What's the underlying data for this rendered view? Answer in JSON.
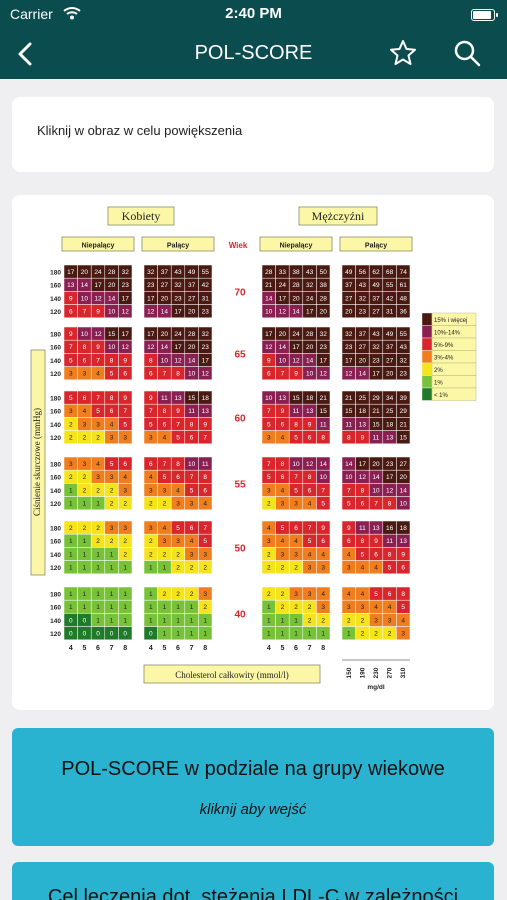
{
  "status": {
    "carrier": "Carrier",
    "time": "2:40 PM"
  },
  "nav": {
    "title": "POL-SCORE"
  },
  "hint": "Kliknij w obraz w celu powiększenia",
  "chart_data": {
    "type": "heatmap",
    "title_women": "Kobiety",
    "title_men": "Mężczyźni",
    "nonsmoking": "Niepalący",
    "smoking": "Palący",
    "age_label": "Wiek",
    "ylabel": "Ciśnienie skurczowe (mmHg)",
    "xlabel": "Cholesterol całkowity (mmol/l)",
    "mgdl_label": "mg/dl",
    "sbp": [
      "180",
      "160",
      "140",
      "120"
    ],
    "chol_mmol": [
      "4",
      "5",
      "6",
      "7",
      "8"
    ],
    "chol_mgdl": [
      "150",
      "190",
      "230",
      "270",
      "310"
    ],
    "ages": [
      "70",
      "65",
      "60",
      "55",
      "50",
      "40"
    ],
    "legend": [
      {
        "label": "15% i więcej",
        "color": "#4a1a12"
      },
      {
        "label": "10%-14%",
        "color": "#8a1f52"
      },
      {
        "label": "5%-9%",
        "color": "#d8262c"
      },
      {
        "label": "3%-4%",
        "color": "#f07d1e"
      },
      {
        "label": "2%",
        "color": "#f5e31c"
      },
      {
        "label": "1%",
        "color": "#78c23a"
      },
      {
        "label": "< 1%",
        "color": "#1f7a2a"
      }
    ],
    "groups": [
      {
        "age": "70",
        "women_ns": [
          [
            17,
            20,
            24,
            28,
            32
          ],
          [
            13,
            14,
            17,
            20,
            23
          ],
          [
            9,
            10,
            12,
            14,
            17
          ],
          [
            6,
            7,
            9,
            10,
            12
          ]
        ],
        "women_s": [
          [
            32,
            37,
            43,
            49,
            55
          ],
          [
            23,
            27,
            32,
            37,
            42
          ],
          [
            17,
            20,
            23,
            27,
            31
          ],
          [
            12,
            14,
            17,
            20,
            23
          ]
        ],
        "men_ns": [
          [
            28,
            33,
            38,
            43,
            50
          ],
          [
            21,
            24,
            28,
            32,
            38
          ],
          [
            14,
            17,
            20,
            24,
            28
          ],
          [
            10,
            12,
            14,
            17,
            20
          ]
        ],
        "men_s": [
          [
            49,
            56,
            62,
            68,
            74
          ],
          [
            37,
            43,
            49,
            55,
            61
          ],
          [
            27,
            32,
            37,
            42,
            48
          ],
          [
            20,
            23,
            27,
            31,
            36
          ]
        ]
      },
      {
        "age": "65",
        "women_ns": [
          [
            9,
            10,
            12,
            15,
            17
          ],
          [
            7,
            8,
            9,
            10,
            12
          ],
          [
            5,
            6,
            7,
            8,
            9
          ],
          [
            3,
            3,
            4,
            5,
            6
          ]
        ],
        "women_s": [
          [
            17,
            20,
            24,
            28,
            32
          ],
          [
            12,
            14,
            17,
            20,
            23
          ],
          [
            8,
            10,
            12,
            14,
            17
          ],
          [
            6,
            7,
            8,
            10,
            12
          ]
        ],
        "men_ns": [
          [
            17,
            20,
            24,
            28,
            32
          ],
          [
            12,
            14,
            17,
            20,
            23
          ],
          [
            9,
            10,
            12,
            14,
            17
          ],
          [
            6,
            7,
            9,
            10,
            12
          ]
        ],
        "men_s": [
          [
            32,
            37,
            43,
            49,
            55
          ],
          [
            23,
            27,
            32,
            37,
            43
          ],
          [
            17,
            20,
            23,
            27,
            32
          ],
          [
            12,
            14,
            17,
            20,
            23
          ]
        ]
      },
      {
        "age": "60",
        "women_ns": [
          [
            5,
            6,
            7,
            8,
            9
          ],
          [
            3,
            4,
            5,
            6,
            7
          ],
          [
            2,
            3,
            3,
            4,
            5
          ],
          [
            2,
            2,
            2,
            3,
            3
          ]
        ],
        "women_s": [
          [
            9,
            11,
            13,
            15,
            18
          ],
          [
            7,
            8,
            9,
            11,
            13
          ],
          [
            5,
            6,
            7,
            8,
            9
          ],
          [
            3,
            4,
            5,
            6,
            7
          ]
        ],
        "men_ns": [
          [
            10,
            13,
            15,
            18,
            21
          ],
          [
            7,
            9,
            11,
            13,
            15
          ],
          [
            5,
            6,
            8,
            9,
            11
          ],
          [
            3,
            4,
            5,
            6,
            8
          ]
        ],
        "men_s": [
          [
            21,
            25,
            29,
            34,
            39
          ],
          [
            15,
            18,
            21,
            25,
            29
          ],
          [
            11,
            13,
            15,
            18,
            21
          ],
          [
            8,
            9,
            11,
            13,
            15
          ]
        ]
      },
      {
        "age": "55",
        "women_ns": [
          [
            3,
            3,
            4,
            5,
            6
          ],
          [
            2,
            2,
            3,
            3,
            4
          ],
          [
            1,
            2,
            2,
            2,
            3
          ],
          [
            1,
            1,
            1,
            2,
            2
          ]
        ],
        "women_s": [
          [
            6,
            7,
            8,
            10,
            11
          ],
          [
            4,
            5,
            6,
            7,
            8
          ],
          [
            3,
            3,
            4,
            5,
            6
          ],
          [
            2,
            2,
            3,
            3,
            4
          ]
        ],
        "men_ns": [
          [
            7,
            8,
            10,
            12,
            14
          ],
          [
            5,
            6,
            7,
            8,
            10
          ],
          [
            3,
            4,
            5,
            6,
            7
          ],
          [
            2,
            3,
            3,
            4,
            5
          ]
        ],
        "men_s": [
          [
            14,
            17,
            20,
            23,
            27
          ],
          [
            10,
            12,
            14,
            17,
            20
          ],
          [
            7,
            8,
            10,
            12,
            14
          ],
          [
            5,
            6,
            7,
            8,
            10
          ]
        ]
      },
      {
        "age": "50",
        "women_ns": [
          [
            2,
            2,
            2,
            3,
            3
          ],
          [
            1,
            1,
            2,
            2,
            2
          ],
          [
            1,
            1,
            1,
            1,
            2
          ],
          [
            1,
            1,
            1,
            1,
            1
          ]
        ],
        "women_s": [
          [
            3,
            4,
            5,
            6,
            7
          ],
          [
            2,
            3,
            3,
            4,
            5
          ],
          [
            2,
            2,
            2,
            3,
            3
          ],
          [
            1,
            1,
            2,
            2,
            2
          ]
        ],
        "men_ns": [
          [
            4,
            5,
            6,
            7,
            9
          ],
          [
            3,
            4,
            4,
            5,
            6
          ],
          [
            2,
            3,
            3,
            4,
            4
          ],
          [
            2,
            2,
            2,
            3,
            3
          ]
        ],
        "men_s": [
          [
            9,
            11,
            13,
            16,
            18
          ],
          [
            6,
            8,
            9,
            11,
            13
          ],
          [
            4,
            5,
            6,
            8,
            9
          ],
          [
            3,
            4,
            4,
            5,
            6
          ]
        ]
      },
      {
        "age": "40",
        "women_ns": [
          [
            1,
            1,
            1,
            1,
            1
          ],
          [
            1,
            1,
            1,
            1,
            1
          ],
          [
            0,
            0,
            1,
            1,
            1
          ],
          [
            0,
            0,
            0,
            0,
            0
          ]
        ],
        "women_s": [
          [
            1,
            2,
            2,
            2,
            3
          ],
          [
            1,
            1,
            1,
            1,
            2
          ],
          [
            1,
            1,
            1,
            1,
            1
          ],
          [
            0,
            1,
            1,
            1,
            1
          ]
        ],
        "men_ns": [
          [
            2,
            2,
            3,
            3,
            4
          ],
          [
            1,
            2,
            2,
            2,
            3
          ],
          [
            1,
            1,
            1,
            2,
            2
          ],
          [
            1,
            1,
            1,
            1,
            1
          ]
        ],
        "men_s": [
          [
            4,
            4,
            5,
            6,
            8
          ],
          [
            3,
            3,
            4,
            4,
            5
          ],
          [
            2,
            2,
            3,
            3,
            4
          ],
          [
            1,
            2,
            2,
            2,
            3
          ]
        ]
      }
    ]
  },
  "button1": {
    "title": "POL-SCORE w podziale na grupy wiekowe",
    "subtitle": "kliknij aby wejść"
  },
  "button2": {
    "title": "Cel leczenia dot. stężenia LDL-C w zależności"
  }
}
